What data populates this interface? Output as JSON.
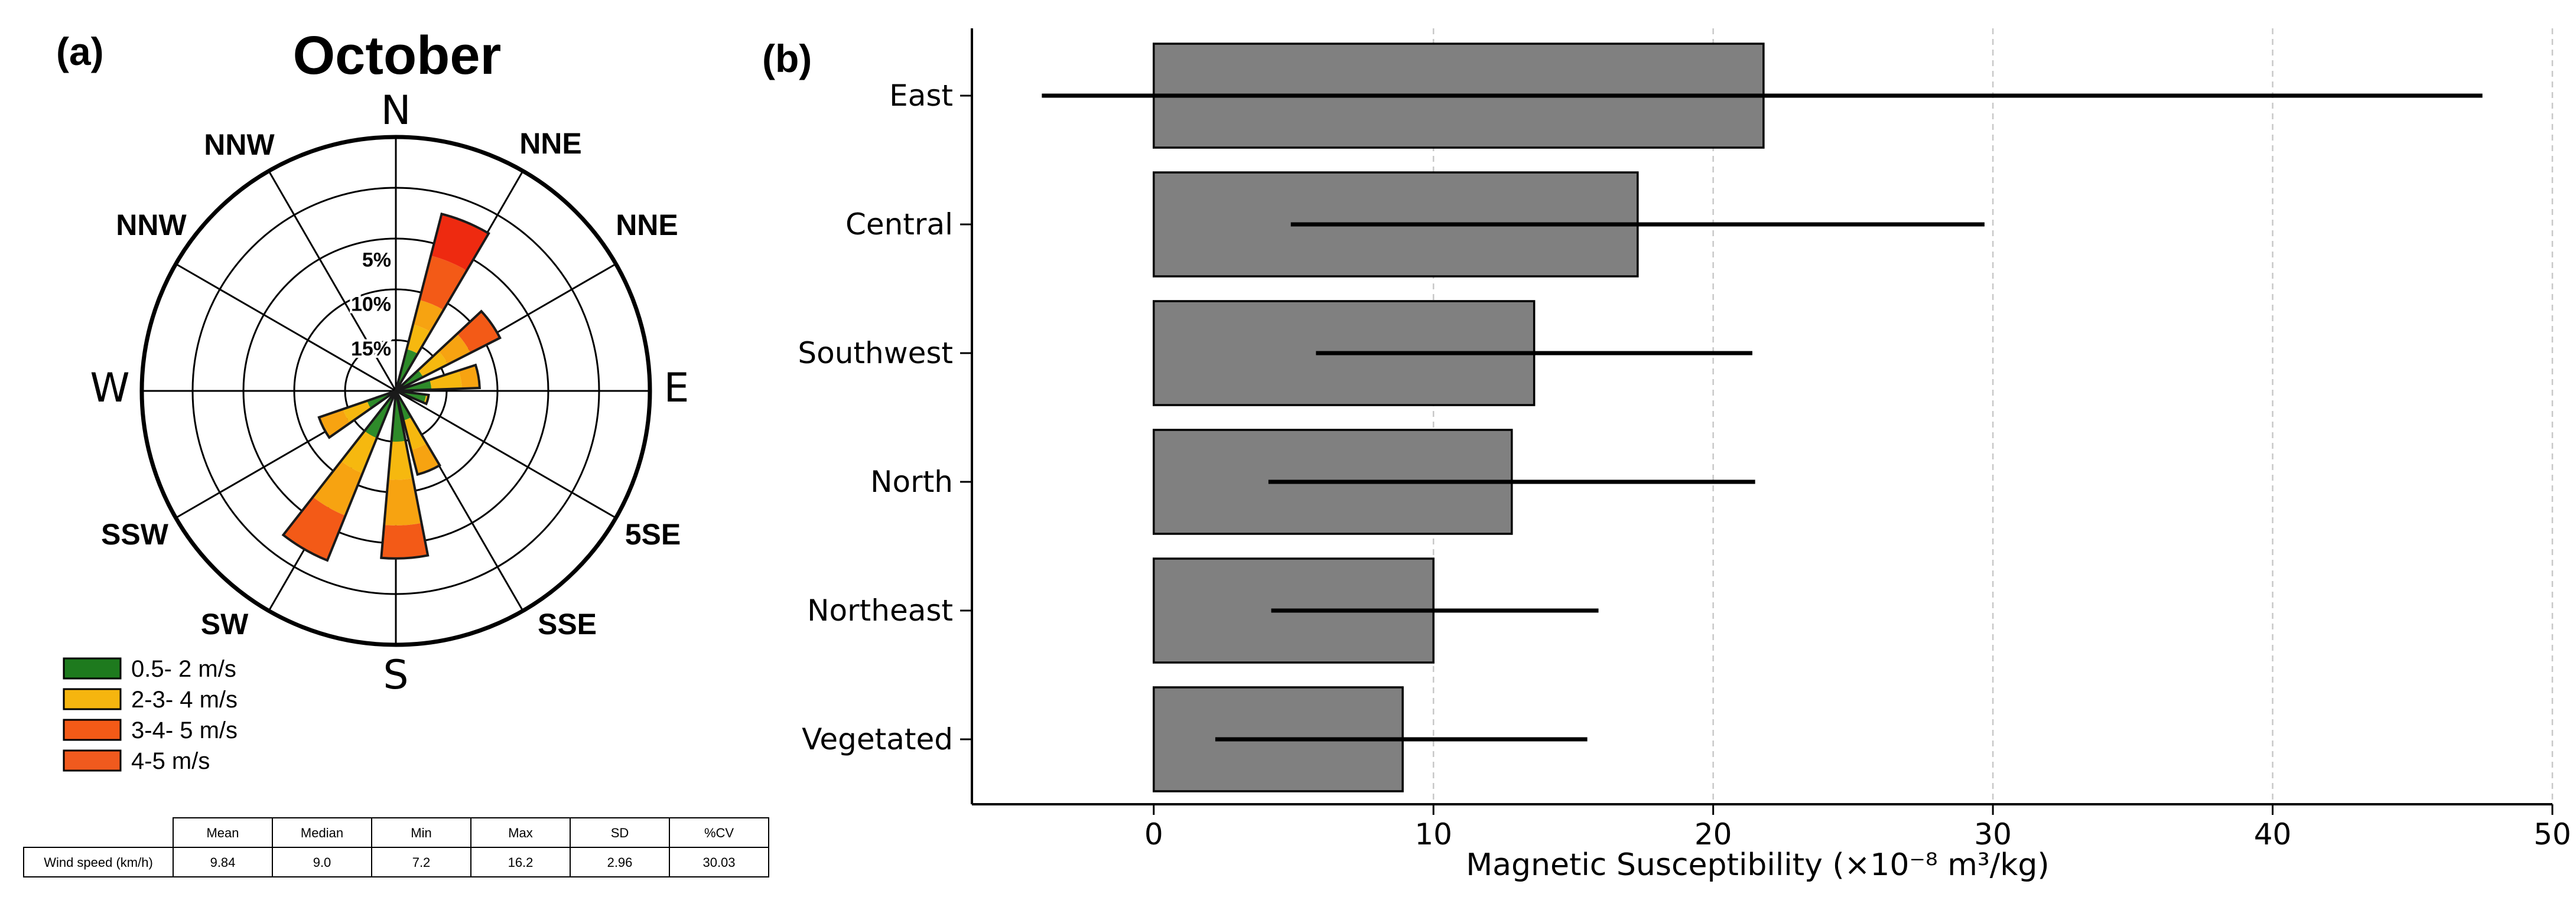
{
  "panel_a": {
    "label": "(a)",
    "title": "October",
    "directions": {
      "n": "N",
      "nnw_top": "NNW",
      "nne_top": "NNE",
      "nnw_side": "NNW",
      "nne_side": "NNE",
      "w": "W",
      "e": "E",
      "ssw": "SSW",
      "sse_side": "5SE",
      "sw": "SW",
      "sse_bottom": "SSE",
      "s": "S"
    },
    "ring_labels": [
      "5%",
      "10%",
      "15%"
    ],
    "legend": [
      {
        "label": "0.5- 2 m/s",
        "color": "#1e7a1e"
      },
      {
        "label": "2-3- 4 m/s",
        "color": "#f6b50f"
      },
      {
        "label": "3-4- 5 m/s",
        "color": "#f35a17"
      },
      {
        "label": "4-5 m/s",
        "color": "#f05a1e"
      }
    ],
    "speed_colors": [
      "#2e8b2a",
      "#f6b80f",
      "#f7a311",
      "#f35a17",
      "#ee2a10"
    ],
    "petals": [
      {
        "direction_deg": 22.5,
        "layers": [
          0.17,
          0.27,
          0.37,
          0.55,
          0.72
        ]
      },
      {
        "direction_deg": 55,
        "layers": [
          0.12,
          0.23,
          0.33,
          0.46
        ]
      },
      {
        "direction_deg": 80,
        "layers": [
          0.14,
          0.26,
          0.33
        ]
      },
      {
        "direction_deg": 105,
        "layers": [
          0.12,
          0.13
        ]
      },
      {
        "direction_deg": 157.5,
        "layers": [
          0.12,
          0.24,
          0.34
        ]
      },
      {
        "direction_deg": 177,
        "layers": [
          0.2,
          0.35,
          0.53,
          0.66
        ]
      },
      {
        "direction_deg": 210,
        "layers": [
          0.2,
          0.35,
          0.53,
          0.72
        ]
      },
      {
        "direction_deg": 243,
        "layers": [
          0.12,
          0.22,
          0.32
        ]
      }
    ],
    "stats_table": {
      "headers": [
        "",
        "Mean",
        "Median",
        "Min",
        "Max",
        "SD",
        "%CV"
      ],
      "rows": [
        [
          "Wind speed (km/h)",
          "9.84",
          "9.0",
          "7.2",
          "16.2",
          "2.96",
          "30.03"
        ]
      ]
    }
  },
  "panel_b": {
    "label": "(b)",
    "chart_data": {
      "type": "bar",
      "orientation": "horizontal",
      "categories": [
        "East",
        "Central",
        "Southwest",
        "North",
        "Northeast",
        "Vegetated"
      ],
      "values": [
        21.8,
        17.3,
        13.6,
        12.8,
        10.0,
        8.9
      ],
      "error_low": [
        -4.0,
        4.9,
        5.8,
        4.1,
        4.2,
        2.2
      ],
      "error_high": [
        47.5,
        29.7,
        21.4,
        21.5,
        15.9,
        15.5
      ],
      "xlabel": "Magnetic Susceptibility (×10⁻⁸ m³/kg)",
      "ylabel": "",
      "xlim": [
        -6.5,
        50
      ],
      "xticks": [
        0,
        10,
        20,
        30,
        40,
        50
      ],
      "bar_color": "#808080",
      "grid": "vertical dashed"
    }
  }
}
